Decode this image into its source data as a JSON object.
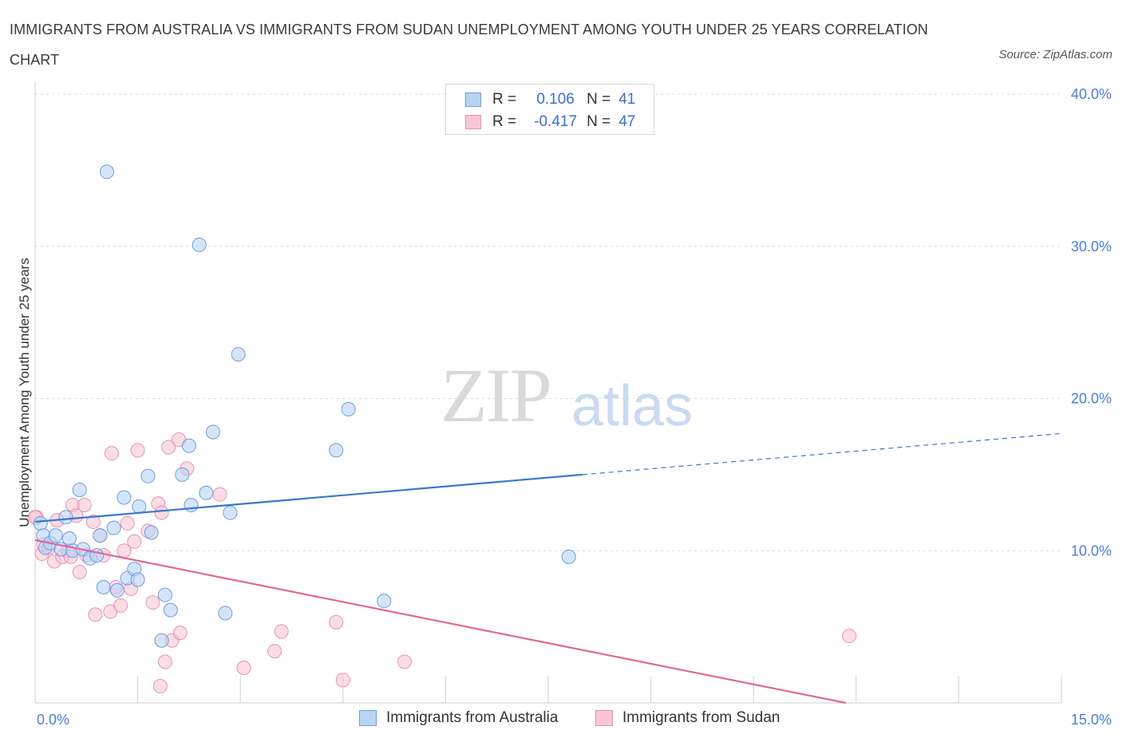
{
  "header": {
    "title": "IMMIGRANTS FROM AUSTRALIA VS IMMIGRANTS FROM SUDAN UNEMPLOYMENT AMONG YOUTH UNDER 25 YEARS CORRELATION CHART",
    "source": "Source: ZipAtlas.com"
  },
  "watermark": {
    "zip": "ZIP",
    "atlas": "atlas"
  },
  "legend": {
    "rows": [
      {
        "r_label": "R =",
        "r_value": "0.106",
        "n_label": "N =",
        "n_value": "41"
      },
      {
        "r_label": "R =",
        "r_value": "-0.417",
        "n_label": "N =",
        "n_value": "47"
      }
    ]
  },
  "bottom_legend": {
    "australia": "Immigrants from Australia",
    "sudan": "Immigrants from Sudan"
  },
  "colors": {
    "australia_fill": "#b9d3f5",
    "australia_stroke": "#6a9de0",
    "australia_line": "#3a78cc",
    "sudan_fill": "#f8c6d6",
    "sudan_stroke": "#e892b0",
    "sudan_line": "#e0689a",
    "grid": "#dcdcdc",
    "tick_text": "#4a7fd4"
  },
  "chart_data": {
    "type": "scatter",
    "title": "IMMIGRANTS FROM AUSTRALIA VS IMMIGRANTS FROM SUDAN UNEMPLOYMENT AMONG YOUTH UNDER 25 YEARS CORRELATION CHART",
    "xlabel": "",
    "ylabel": "Unemployment Among Youth under 25 years",
    "xlim": [
      0,
      15
    ],
    "ylim": [
      0,
      40
    ],
    "x_tick_labels": [
      {
        "value": 0,
        "label": "0.0%"
      },
      {
        "value": 15,
        "label": "15.0%"
      }
    ],
    "y_tick_labels": [
      {
        "value": 10,
        "label": "10.0%"
      },
      {
        "value": 20,
        "label": "20.0%"
      },
      {
        "value": 30,
        "label": "30.0%"
      },
      {
        "value": 40,
        "label": "40.0%"
      }
    ],
    "grid": true,
    "legend_position": "top-center",
    "series": [
      {
        "name": "Immigrants from Australia",
        "points": [
          [
            0.08,
            11.8
          ],
          [
            0.12,
            11.0
          ],
          [
            0.15,
            10.2
          ],
          [
            0.22,
            10.5
          ],
          [
            0.3,
            11.0
          ],
          [
            0.38,
            10.1
          ],
          [
            0.45,
            12.2
          ],
          [
            0.5,
            10.8
          ],
          [
            0.55,
            10.0
          ],
          [
            0.65,
            14.0
          ],
          [
            0.7,
            10.1
          ],
          [
            0.8,
            9.5
          ],
          [
            0.9,
            9.7
          ],
          [
            0.95,
            11.0
          ],
          [
            1.0,
            7.6
          ],
          [
            1.05,
            34.9
          ],
          [
            1.15,
            11.5
          ],
          [
            1.2,
            7.4
          ],
          [
            1.3,
            13.5
          ],
          [
            1.35,
            8.2
          ],
          [
            1.45,
            8.8
          ],
          [
            1.5,
            8.1
          ],
          [
            1.52,
            12.9
          ],
          [
            1.65,
            14.9
          ],
          [
            1.7,
            11.2
          ],
          [
            1.85,
            4.1
          ],
          [
            1.9,
            7.1
          ],
          [
            1.98,
            6.1
          ],
          [
            2.15,
            15.0
          ],
          [
            2.25,
            16.9
          ],
          [
            2.28,
            13.0
          ],
          [
            2.4,
            30.1
          ],
          [
            2.5,
            13.8
          ],
          [
            2.6,
            17.8
          ],
          [
            2.78,
            5.9
          ],
          [
            2.85,
            12.5
          ],
          [
            2.97,
            22.9
          ],
          [
            4.4,
            16.6
          ],
          [
            4.58,
            19.3
          ],
          [
            5.1,
            6.7
          ],
          [
            7.8,
            9.6
          ]
        ],
        "trend": {
          "x": [
            0,
            8.0
          ],
          "y": [
            11.9,
            15.0
          ],
          "extension_x": [
            8.0,
            15.0
          ],
          "extension_y": [
            15.0,
            17.7
          ]
        }
      },
      {
        "name": "Immigrants from Sudan",
        "points": [
          [
            0.02,
            12.2
          ],
          [
            0.1,
            9.8
          ],
          [
            0.12,
            10.4
          ],
          [
            0.2,
            10.2
          ],
          [
            0.28,
            9.3
          ],
          [
            0.32,
            12.0
          ],
          [
            0.4,
            9.6
          ],
          [
            0.48,
            10.0
          ],
          [
            0.52,
            9.6
          ],
          [
            0.55,
            13.0
          ],
          [
            0.6,
            12.3
          ],
          [
            0.65,
            8.6
          ],
          [
            0.72,
            13.0
          ],
          [
            0.75,
            9.7
          ],
          [
            0.85,
            11.9
          ],
          [
            0.88,
            5.8
          ],
          [
            0.95,
            11.0
          ],
          [
            1.0,
            9.7
          ],
          [
            1.1,
            6.0
          ],
          [
            1.12,
            16.4
          ],
          [
            1.18,
            7.6
          ],
          [
            1.25,
            6.4
          ],
          [
            1.3,
            10.0
          ],
          [
            1.35,
            11.8
          ],
          [
            1.4,
            7.5
          ],
          [
            1.45,
            10.6
          ],
          [
            1.5,
            16.6
          ],
          [
            1.65,
            11.3
          ],
          [
            1.72,
            6.6
          ],
          [
            1.8,
            13.1
          ],
          [
            1.83,
            1.1
          ],
          [
            1.85,
            12.5
          ],
          [
            1.9,
            2.7
          ],
          [
            1.95,
            16.8
          ],
          [
            2.0,
            4.1
          ],
          [
            2.1,
            17.3
          ],
          [
            2.12,
            4.6
          ],
          [
            2.22,
            15.4
          ],
          [
            2.7,
            13.7
          ],
          [
            3.05,
            2.3
          ],
          [
            3.5,
            3.4
          ],
          [
            3.6,
            4.7
          ],
          [
            4.4,
            5.3
          ],
          [
            4.5,
            1.5
          ],
          [
            5.4,
            2.7
          ],
          [
            11.9,
            4.4
          ],
          [
            0.0,
            12.2
          ]
        ],
        "trend": {
          "x": [
            0,
            11.85
          ],
          "y": [
            10.7,
            0.0
          ]
        }
      }
    ]
  }
}
